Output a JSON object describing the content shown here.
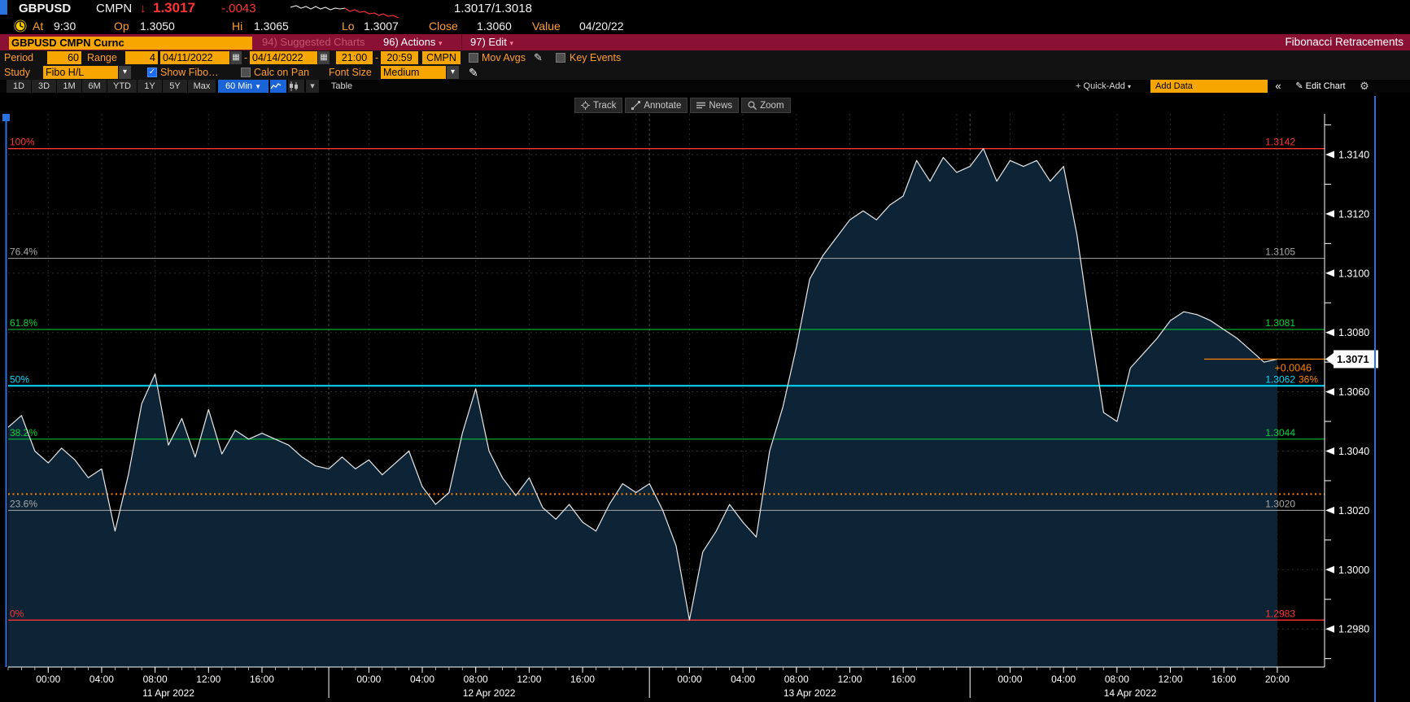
{
  "header": {
    "ticker": "GBPUSD",
    "source": "CMPN",
    "arrow_down": "↓",
    "last": "1.3017",
    "net_change": "-.0043",
    "bid_ask": "1.3017/1.3018",
    "at_label": "At",
    "at_time": "9:30",
    "op_label": "Op",
    "op": "1.3050",
    "hi_label": "Hi",
    "hi": "1.3065",
    "lo_label": "Lo",
    "lo": "1.3007",
    "close_label": "Close",
    "close": "1.3060",
    "value_label": "Value",
    "value_date": "04/20/22",
    "sparkline": {
      "white": [
        [
          0,
          7
        ],
        [
          7,
          5
        ],
        [
          13,
          8
        ],
        [
          19,
          6
        ],
        [
          25,
          9
        ],
        [
          31,
          6
        ],
        [
          37,
          9
        ],
        [
          43,
          7
        ],
        [
          49,
          10
        ],
        [
          55,
          8
        ],
        [
          61,
          9
        ],
        [
          67,
          8
        ]
      ],
      "red": [
        [
          67,
          8
        ],
        [
          73,
          12
        ],
        [
          79,
          10
        ],
        [
          85,
          13
        ],
        [
          91,
          12
        ],
        [
          97,
          15
        ],
        [
          103,
          14
        ],
        [
          109,
          17
        ],
        [
          114,
          15
        ],
        [
          120,
          18
        ],
        [
          126,
          17
        ],
        [
          133,
          20
        ]
      ]
    }
  },
  "redbar": {
    "security": "GBPUSD CMPN Curnc",
    "suggested": "94) Suggested Charts",
    "actions": "96) Actions",
    "edit": "97) Edit",
    "title": "Fibonacci Retracements"
  },
  "controls": {
    "period_label": "Period",
    "period": "60",
    "range_label": "Range",
    "range": "4",
    "date_from": "04/11/2022",
    "date_sep": "-",
    "date_to": "04/14/2022",
    "time_from": "21:00",
    "time_sep": "-",
    "time_to": "20:59",
    "source_btn": "CMPN",
    "mov_avgs": "Mov Avgs",
    "key_events": "Key Events",
    "study_label": "Study",
    "study": "Fibo H/L",
    "show_fibo": "Show Fibo…",
    "calc_on_pan": "Calc on Pan",
    "font_size_label": "Font Size",
    "font_size": "Medium"
  },
  "tabs": {
    "items": [
      "1D",
      "3D",
      "1M",
      "6M",
      "YTD",
      "1Y",
      "5Y",
      "Max"
    ],
    "interval": "60 Min",
    "table": "Table",
    "quick_add": "+ Quick-Add",
    "add_data": "Add Data",
    "collapse": "«",
    "edit_chart": "Edit Chart"
  },
  "chart_toolbar": {
    "track": "Track",
    "annotate": "Annotate",
    "news": "News",
    "zoom": "Zoom"
  },
  "icons": {
    "chevron_down": "▾",
    "solid_down": "▼",
    "double_left": "«",
    "gear": "⚙",
    "pencil": "✎",
    "check": "✓",
    "calendar": "▦"
  },
  "chart_data": {
    "type": "area",
    "instrument": "GBPUSD spot (60 min bars)",
    "x_start": "2022-04-10 21:00",
    "x_end": "2022-04-14 20:59",
    "prices": [
      1.3048,
      1.3052,
      1.304,
      1.3036,
      1.3041,
      1.3037,
      1.3031,
      1.3034,
      1.3013,
      1.3032,
      1.3056,
      1.3066,
      1.3042,
      1.3051,
      1.3038,
      1.3054,
      1.3039,
      1.3047,
      1.3044,
      1.3046,
      1.3044,
      1.3042,
      1.3038,
      1.3035,
      1.3034,
      1.3038,
      1.3034,
      1.3037,
      1.3032,
      1.3036,
      1.304,
      1.3028,
      1.3022,
      1.3026,
      1.3046,
      1.3061,
      1.304,
      1.3031,
      1.3025,
      1.3031,
      1.3021,
      1.3017,
      1.3022,
      1.3016,
      1.3013,
      1.3022,
      1.3029,
      1.3026,
      1.3029,
      1.302,
      1.3008,
      1.2983,
      1.3006,
      1.3013,
      1.3022,
      1.3016,
      1.3011,
      1.304,
      1.3055,
      1.3075,
      1.3098,
      1.3106,
      1.3112,
      1.3118,
      1.3121,
      1.3118,
      1.3123,
      1.3126,
      1.3138,
      1.3131,
      1.3139,
      1.3134,
      1.3136,
      1.3142,
      1.3131,
      1.3138,
      1.3136,
      1.3138,
      1.3131,
      1.3136,
      1.3113,
      1.3082,
      1.3053,
      1.305,
      1.3068,
      1.3073,
      1.3078,
      1.3084,
      1.3087,
      1.3086,
      1.3084,
      1.3081,
      1.3078,
      1.3074,
      1.307,
      1.3071
    ],
    "y_axis": {
      "ticks": [
        "1.3140",
        "1.3120",
        "1.3100",
        "1.3080",
        "1.3060",
        "1.3040",
        "1.3020",
        "1.3000",
        "1.2980"
      ],
      "range": [
        1.2962,
        1.3157
      ]
    },
    "x_axis": {
      "hour_labels": [
        "00:00",
        "04:00",
        "08:00",
        "12:00",
        "16:00"
      ],
      "last_label": "20:00",
      "days": [
        "11 Apr 2022",
        "12 Apr 2022",
        "13 Apr 2022",
        "14 Apr 2022"
      ]
    },
    "fibonacci": {
      "levels": [
        {
          "pct": "100%",
          "value": "1.3142",
          "color": "#ff3434",
          "width": 1.4
        },
        {
          "pct": "76.4%",
          "value": "1.3105",
          "color": "#a8a8a8",
          "width": 1
        },
        {
          "pct": "61.8%",
          "value": "1.3081",
          "color": "#00d437",
          "width": 1
        },
        {
          "pct": "50%",
          "value": "1.3062",
          "color": "#00dcff",
          "width": 2
        },
        {
          "pct": "38.2%",
          "value": "1.3044",
          "color": "#00d437",
          "width": 1
        },
        {
          "pct": "23.6%",
          "value": "1.3020",
          "color": "#a8a8a8",
          "width": 1
        },
        {
          "pct": "0%",
          "value": "1.2983",
          "color": "#ff3434",
          "width": 1.4
        }
      ]
    },
    "last": {
      "price": "1.3071",
      "change": "+0.0046",
      "pct": "36%"
    },
    "reference_dotted_price": 1.30255,
    "colors": {
      "line": "#e8e8e8",
      "fill": "#0d2336",
      "grid": "#2b2b2b",
      "day_grid": "#4f4f4f",
      "axis": "#ffffff",
      "ref_dotted": "#ff8400",
      "last_line": "#ff8400",
      "selection_blue": "#2a72e0"
    }
  }
}
